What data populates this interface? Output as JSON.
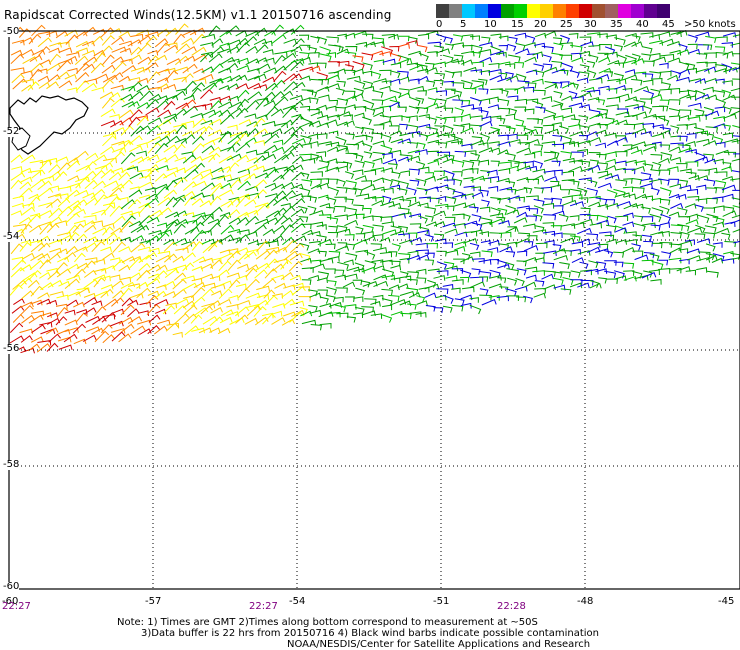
{
  "title": "Rapidscat Corrected Winds(12.5KM) v1.1 20150716 ascending",
  "legend": {
    "colors": [
      "#404040",
      "#808080",
      "#00c8ff",
      "#0080ff",
      "#0000e0",
      "#00a000",
      "#00d000",
      "#ffff00",
      "#ffd000",
      "#ff8000",
      "#ff4000",
      "#d00000",
      "#a05030",
      "#a06060",
      "#e000e0",
      "#a000d0",
      "#600090",
      "#400070"
    ],
    "labels": [
      "0",
      "5",
      "10",
      "15",
      "20",
      "25",
      "30",
      "35",
      "40",
      "45",
      ">50 knots"
    ]
  },
  "map": {
    "lon_labels": [
      "-60",
      "-57",
      "-54",
      "-51",
      "-48",
      "-45"
    ],
    "lat_labels": [
      "-50",
      "-52",
      "-54",
      "-56",
      "-58",
      "-60"
    ],
    "time_labels": [
      "22:27",
      "22:27",
      "22:28"
    ]
  },
  "notes": {
    "line1": "Note: 1) Times are GMT 2)Times along bottom correspond to measurement at ~50S",
    "line2": "3)Data buffer is 22 hrs from 20150716 4) Black wind barbs indicate possible contamination",
    "line3": "NOAA/NESDIS/Center for Satellite Applications and Research"
  }
}
